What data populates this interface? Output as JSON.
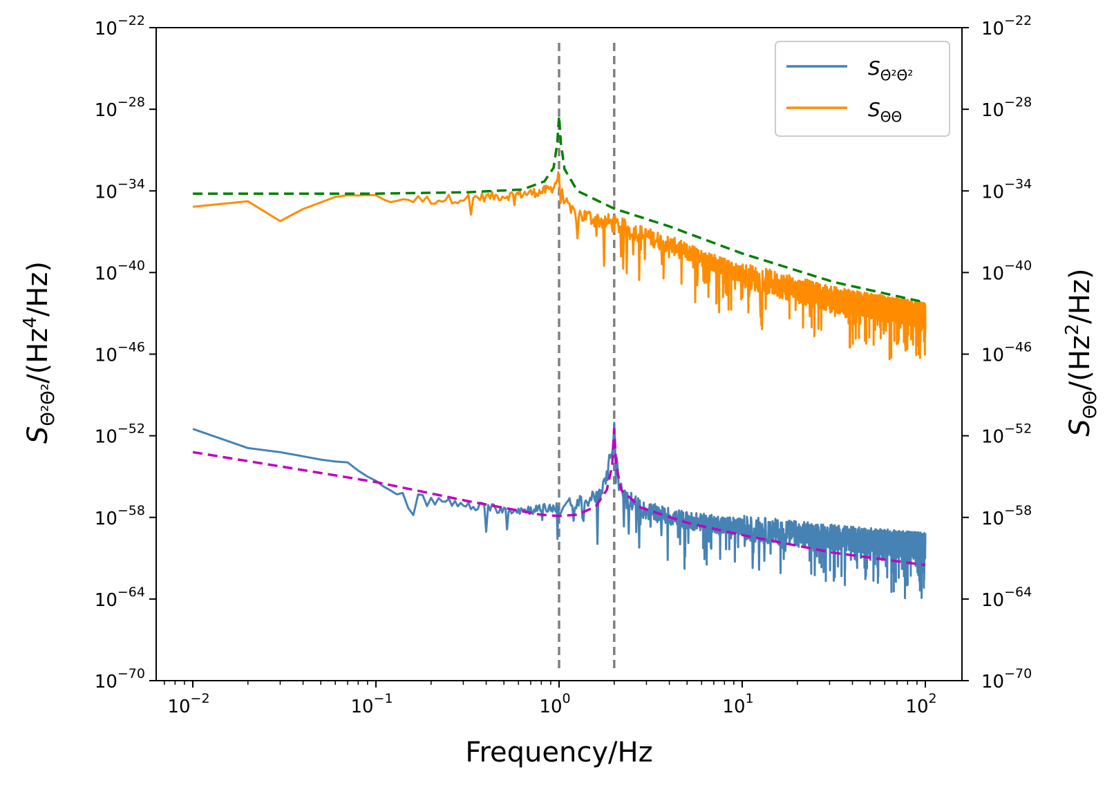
{
  "chart_data": {
    "type": "line",
    "title": "",
    "xlabel": "Frequency/Hz",
    "ylabel_left": "S_{Θ̇²Θ̇²}/(Hz⁴/Hz)",
    "ylabel_left_main": "S",
    "ylabel_left_sub": "Θ̇²Θ̇²",
    "ylabel_left_unit": "/(Hz",
    "ylabel_left_unit_exp": "4",
    "ylabel_left_unit_tail": "/Hz)",
    "ylabel_right": "S_{ΘΘ}/(Hz²/Hz)",
    "ylabel_right_main": "S",
    "ylabel_right_sub": "ΘΘ",
    "ylabel_right_unit": "/(Hz",
    "ylabel_right_unit_exp": "2",
    "ylabel_right_unit_tail": "/Hz)",
    "x_scale": "log",
    "y_scale": "log",
    "xlim_log10": [
      -2.2,
      2.2
    ],
    "ylim_log10": [
      -70,
      -22
    ],
    "x_ticks": [
      {
        "log": -2,
        "base": "10",
        "exp": "−2"
      },
      {
        "log": -1,
        "base": "10",
        "exp": "−1"
      },
      {
        "log": 0,
        "base": "10",
        "exp": "0"
      },
      {
        "log": 1,
        "base": "10",
        "exp": "1"
      },
      {
        "log": 2,
        "base": "10",
        "exp": "2"
      }
    ],
    "y_ticks": [
      {
        "log": -22,
        "base": "10",
        "exp": "−22"
      },
      {
        "log": -28,
        "base": "10",
        "exp": "−28"
      },
      {
        "log": -34,
        "base": "10",
        "exp": "−34"
      },
      {
        "log": -40,
        "base": "10",
        "exp": "−40"
      },
      {
        "log": -46,
        "base": "10",
        "exp": "−46"
      },
      {
        "log": -52,
        "base": "10",
        "exp": "−52"
      },
      {
        "log": -58,
        "base": "10",
        "exp": "−58"
      },
      {
        "log": -64,
        "base": "10",
        "exp": "−64"
      },
      {
        "log": -70,
        "base": "10",
        "exp": "−70"
      }
    ],
    "vlines": [
      {
        "x": 1.0,
        "color": "#808080",
        "style": "dashed"
      },
      {
        "x": 2.0,
        "color": "#808080",
        "style": "dashed"
      }
    ],
    "legend": {
      "placement": "top-right",
      "entries": [
        {
          "label_main": "S",
          "label_sub": "Θ̇²Θ̇²",
          "color": "#4682b4"
        },
        {
          "label_main": "S",
          "label_sub": "ΘΘ",
          "color": "#ff8c00"
        }
      ]
    },
    "series": [
      {
        "name": "S_ΘΘ (measured)",
        "color": "#ff8c00",
        "style": "solid",
        "noisy": true,
        "f_start": 0.01,
        "f_end": 100,
        "anchors_log": [
          [
            -2.0,
            -35.2
          ],
          [
            -1.7,
            -34.8
          ],
          [
            -1.52,
            -36.3
          ],
          [
            -1.4,
            -35.3
          ],
          [
            -1.15,
            -34.2
          ],
          [
            -1.0,
            -34.5
          ],
          [
            -0.7,
            -34.6
          ],
          [
            -0.3,
            -34.3
          ],
          [
            -0.1,
            -34.0
          ],
          [
            -0.03,
            -33.7
          ],
          [
            0.0,
            -32.7
          ],
          [
            0.05,
            -35.4
          ],
          [
            0.3,
            -36.3
          ],
          [
            0.6,
            -37.8
          ],
          [
            1.0,
            -40.0
          ],
          [
            1.5,
            -41.8
          ],
          [
            2.0,
            -43.0
          ]
        ]
      },
      {
        "name": "S_ΘΘ (model)",
        "color": "#008000",
        "style": "dashed",
        "noisy": false,
        "anchors_log": [
          [
            -2.0,
            -34.2
          ],
          [
            -1.0,
            -34.2
          ],
          [
            -0.5,
            -34.1
          ],
          [
            -0.2,
            -33.9
          ],
          [
            -0.08,
            -33.3
          ],
          [
            -0.03,
            -32.3
          ],
          [
            -0.01,
            -30.5
          ],
          [
            0.0,
            -28.5
          ],
          [
            0.01,
            -30.5
          ],
          [
            0.03,
            -32.4
          ],
          [
            0.1,
            -34.0
          ],
          [
            0.3,
            -35.3
          ],
          [
            0.6,
            -36.6
          ],
          [
            1.0,
            -38.6
          ],
          [
            1.5,
            -40.7
          ],
          [
            2.0,
            -42.2
          ]
        ]
      },
      {
        "name": "S_Θ̇²Θ̇² (measured)",
        "color": "#4682b4",
        "style": "solid",
        "noisy": true,
        "f_start": 0.01,
        "f_end": 100,
        "anchors_log": [
          [
            -2.0,
            -51.5
          ],
          [
            -1.7,
            -52.8
          ],
          [
            -1.52,
            -53.1
          ],
          [
            -1.3,
            -53.7
          ],
          [
            -1.15,
            -54.0
          ],
          [
            -1.0,
            -55.5
          ],
          [
            -0.8,
            -56.4
          ],
          [
            -0.5,
            -57.1
          ],
          [
            -0.2,
            -57.4
          ],
          [
            0.0,
            -57.2
          ],
          [
            0.15,
            -56.8
          ],
          [
            0.25,
            -55.6
          ],
          [
            0.29,
            -52.8
          ],
          [
            0.301,
            -51.0
          ],
          [
            0.31,
            -53.5
          ],
          [
            0.33,
            -55.8
          ],
          [
            0.45,
            -57.3
          ],
          [
            0.7,
            -58.1
          ],
          [
            1.0,
            -58.6
          ],
          [
            1.5,
            -59.3
          ],
          [
            2.0,
            -59.9
          ]
        ]
      },
      {
        "name": "S_Θ̇²Θ̇² (model)",
        "color": "#c000c0",
        "style": "dashed",
        "noisy": false,
        "anchors_log": [
          [
            -2.0,
            -53.2
          ],
          [
            -1.0,
            -55.4
          ],
          [
            -0.5,
            -56.8
          ],
          [
            -0.1,
            -57.8
          ],
          [
            0.0,
            -57.9
          ],
          [
            0.1,
            -57.8
          ],
          [
            0.2,
            -57.2
          ],
          [
            0.26,
            -56.0
          ],
          [
            0.29,
            -54.2
          ],
          [
            0.301,
            -51.5
          ],
          [
            0.312,
            -54.2
          ],
          [
            0.34,
            -56.0
          ],
          [
            0.45,
            -57.3
          ],
          [
            0.7,
            -58.4
          ],
          [
            1.0,
            -59.3
          ],
          [
            1.5,
            -60.6
          ],
          [
            2.0,
            -61.5
          ]
        ]
      }
    ]
  }
}
